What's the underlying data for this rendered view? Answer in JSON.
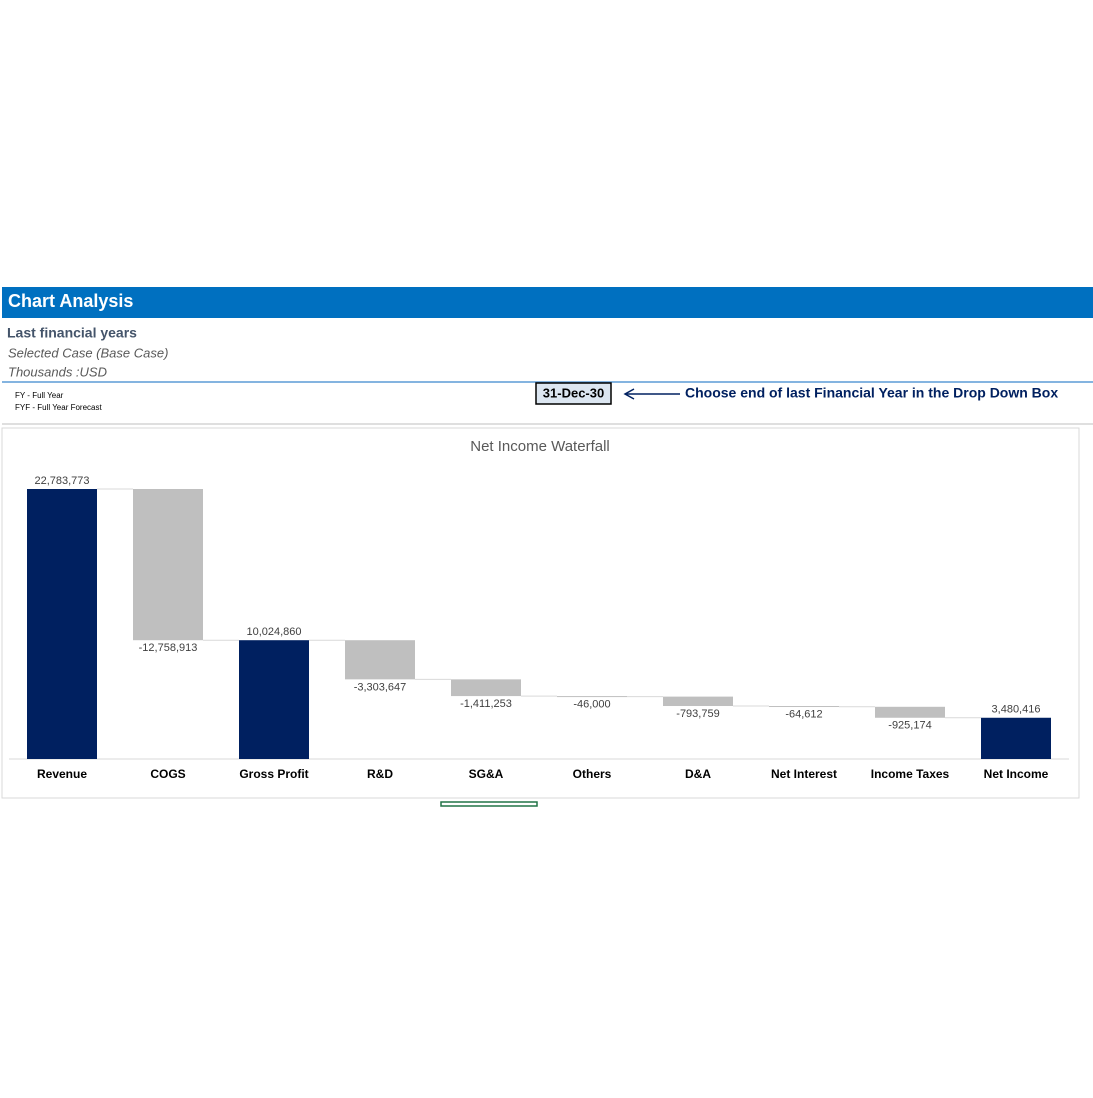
{
  "header": {
    "title": "Chart Analysis",
    "subtitle": "Last financial years",
    "case": "Selected Case (Base Case)",
    "units": "Thousands :USD"
  },
  "notes": [
    "FY - Full Year",
    "FYF - Full Year Forecast"
  ],
  "date_box": "31-Dec-30",
  "instruction": "Choose end of last Financial Year in the Drop Down Box",
  "chart_data": {
    "type": "waterfall",
    "title": "Net Income Waterfall",
    "categories": [
      "Revenue",
      "COGS",
      "Gross Profit",
      "R&D",
      "SG&A",
      "Others",
      "D&A",
      "Net Interest",
      "Income Taxes",
      "Net Income"
    ],
    "values": [
      22783773,
      -12758913,
      10024860,
      -3303647,
      -1411253,
      -46000,
      -793759,
      -64612,
      -925174,
      3480416
    ],
    "value_labels": [
      "22,783,773",
      "-12,758,913",
      "10,024,860",
      "-3,303,647",
      "-1,411,253",
      "-46,000",
      "-793,759",
      "-64,612",
      "-925,174",
      "3,480,416"
    ],
    "totals": [
      true,
      false,
      true,
      false,
      false,
      false,
      false,
      false,
      false,
      true
    ],
    "total_color": "#002060",
    "delta_color": "#bfbfbf"
  }
}
